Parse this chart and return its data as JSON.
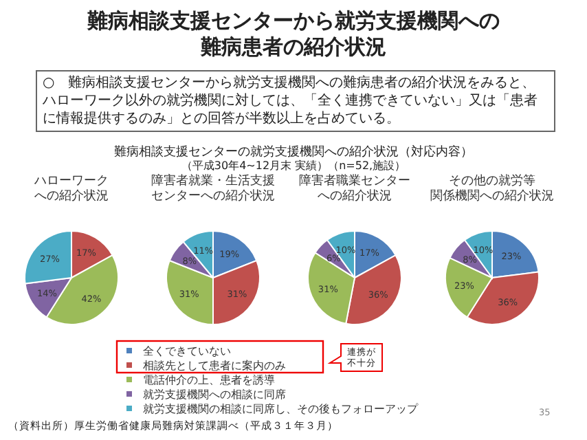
{
  "chart_data": [
    {
      "type": "pie",
      "title": "ハローワークへの紹介状況",
      "categories": [
        "全くできていない",
        "相談先として患者に案内のみ",
        "電話仲介の上、患者を誘導",
        "就労支援機関への相談に同席",
        "就労支援機関の相談に同席し、その後もフォローアップ"
      ],
      "values": [
        0,
        17,
        42,
        14,
        27
      ],
      "value_labels": [
        null,
        "17%",
        "42%",
        "14%",
        "27%"
      ],
      "colors": [
        "#4f81bd",
        "#c0504d",
        "#9bbb59",
        "#8064a2",
        "#4bacc6"
      ],
      "legend": "bottom",
      "annotations": [
        "難病相談支援センターから就労支援機関への難病患者の紹介状況",
        "○　難病相談支援センターから就労支援機関への難病患者の紹介状況をみると、ハローワーク以外の就労機関に対しては、「全く連携できていない」又は「患者に情報提供するのみ」との回答が半数以上を占めている。",
        "難病相談支援センターの就労支援機関への紹介状況（対応内容）",
        "（平成30年4~12月末 実績）（n=52,施設）",
        "連携が不十分",
        "（資料出所）厚生労働省健康局難病対策課調べ（平成３１年３月）",
        "35"
      ]
    },
    {
      "type": "pie",
      "title": "障害者就業・生活支援センターへの紹介状況",
      "categories": [
        null,
        null,
        null,
        null,
        null
      ],
      "values": [
        19,
        31,
        31,
        8,
        11
      ],
      "value_labels": [
        "19%",
        "31%",
        "31%",
        "8%",
        "11%"
      ],
      "colors": [
        "#4f81bd",
        "#c0504d",
        "#9bbb59",
        "#8064a2",
        "#4bacc6"
      ]
    },
    {
      "type": "pie",
      "title": "障害者職業センターへの紹介状況",
      "categories": [
        null,
        null,
        null,
        null,
        null
      ],
      "values": [
        17,
        36,
        31,
        6,
        10
      ],
      "value_labels": [
        "17%",
        "36%",
        "31%",
        "6%",
        "10%"
      ],
      "colors": [
        "#4f81bd",
        "#c0504d",
        "#9bbb59",
        "#8064a2",
        "#4bacc6"
      ]
    },
    {
      "type": "pie",
      "title": "その他の就労等関係機関への紹介状況",
      "categories": [
        null,
        null,
        null,
        null,
        null
      ],
      "values": [
        23,
        36,
        23,
        8,
        10
      ],
      "value_labels": [
        "23%",
        "36%",
        "23%",
        "8%",
        "10%"
      ],
      "colors": [
        "#4f81bd",
        "#c0504d",
        "#9bbb59",
        "#8064a2",
        "#4bacc6"
      ]
    }
  ]
}
